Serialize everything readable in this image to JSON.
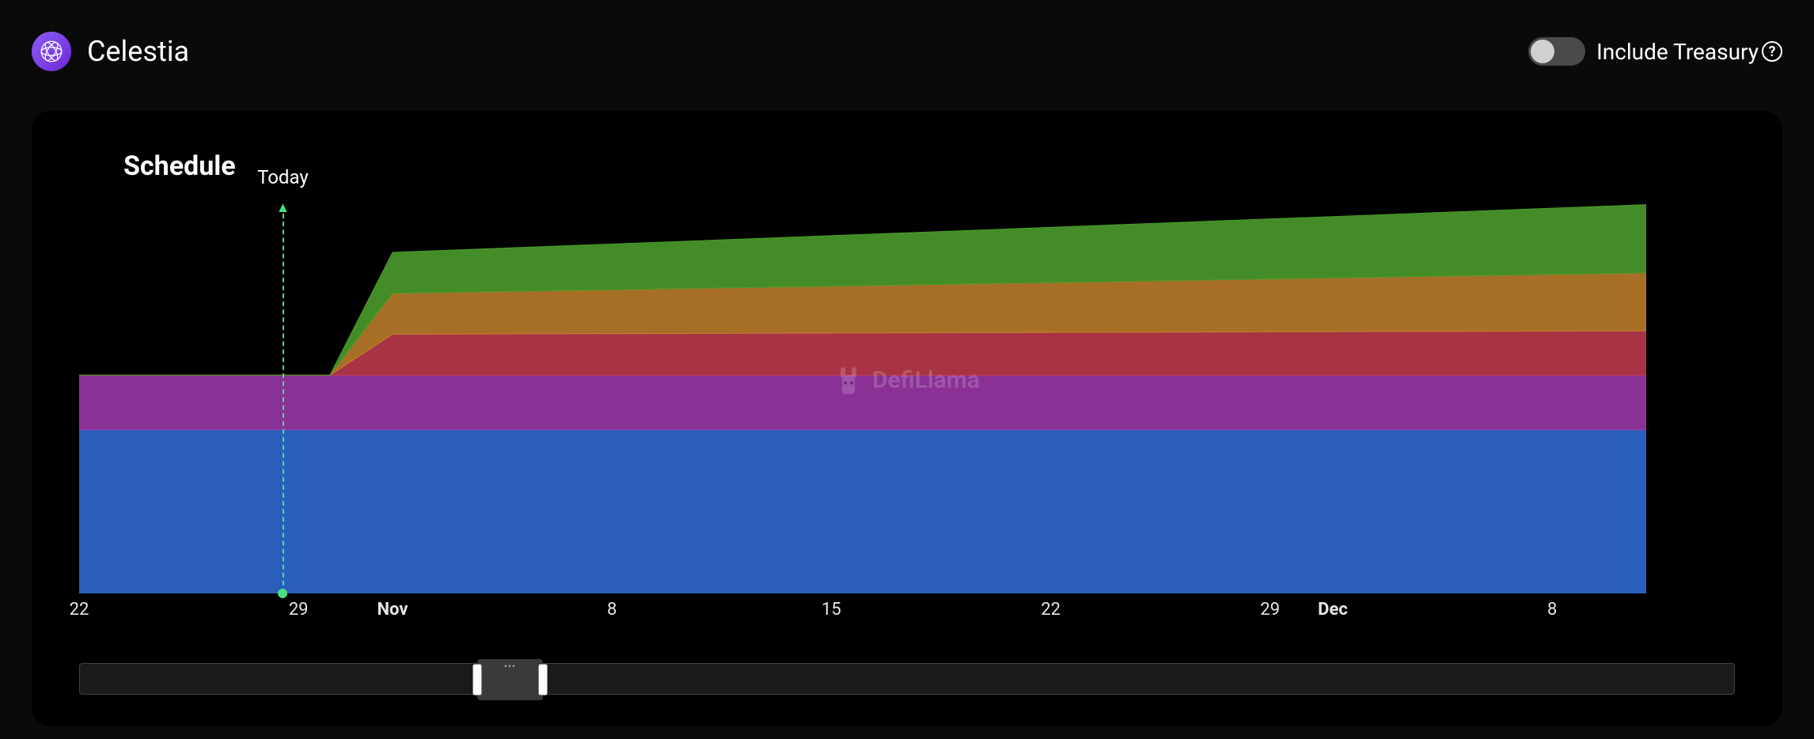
{
  "header": {
    "project_name": "Celestia",
    "logo_bg": "#7c3aed",
    "toggle": {
      "label": "Include Treasury",
      "state": "off"
    }
  },
  "panel": {
    "title": "Schedule",
    "watermark": "DefiLlama"
  },
  "chart": {
    "type": "stacked-area",
    "width_days": 50,
    "height_units": 100,
    "today_label": "Today",
    "today_x": 6.5,
    "today_color": "#4ade80",
    "background": "#000000",
    "series": [
      {
        "name": "blue",
        "color": "#2b64c4",
        "opacity": 0.95,
        "points": [
          [
            0,
            48
          ],
          [
            50,
            48
          ]
        ]
      },
      {
        "name": "purple",
        "color": "#a23ab0",
        "opacity": 0.85,
        "points": [
          [
            0,
            16
          ],
          [
            50,
            16
          ]
        ]
      },
      {
        "name": "red",
        "color": "#c43c50",
        "opacity": 0.85,
        "points": [
          [
            0,
            0
          ],
          [
            8,
            0
          ],
          [
            10,
            12
          ],
          [
            50,
            13
          ]
        ]
      },
      {
        "name": "orange",
        "color": "#c4822b",
        "opacity": 0.85,
        "points": [
          [
            0,
            0
          ],
          [
            8,
            0
          ],
          [
            10,
            12
          ],
          [
            50,
            17
          ]
        ]
      },
      {
        "name": "green",
        "color": "#4a9b2b",
        "opacity": 0.9,
        "points": [
          [
            0,
            0
          ],
          [
            8,
            0
          ],
          [
            10,
            12
          ],
          [
            50,
            20
          ]
        ]
      }
    ],
    "x_ticks": [
      {
        "x": 0,
        "label": "22",
        "bold": false
      },
      {
        "x": 7,
        "label": "29",
        "bold": false
      },
      {
        "x": 10,
        "label": "Nov",
        "bold": true
      },
      {
        "x": 17,
        "label": "8",
        "bold": false
      },
      {
        "x": 24,
        "label": "15",
        "bold": false
      },
      {
        "x": 31,
        "label": "22",
        "bold": false
      },
      {
        "x": 38,
        "label": "29",
        "bold": false
      },
      {
        "x": 40,
        "label": "Dec",
        "bold": true
      },
      {
        "x": 47,
        "label": "8",
        "bold": false
      }
    ]
  },
  "slider": {
    "track_color": "#1a1a1a",
    "window_color": "#3a3a3a",
    "window_left_pct": 24.0,
    "window_width_pct": 4.0
  }
}
